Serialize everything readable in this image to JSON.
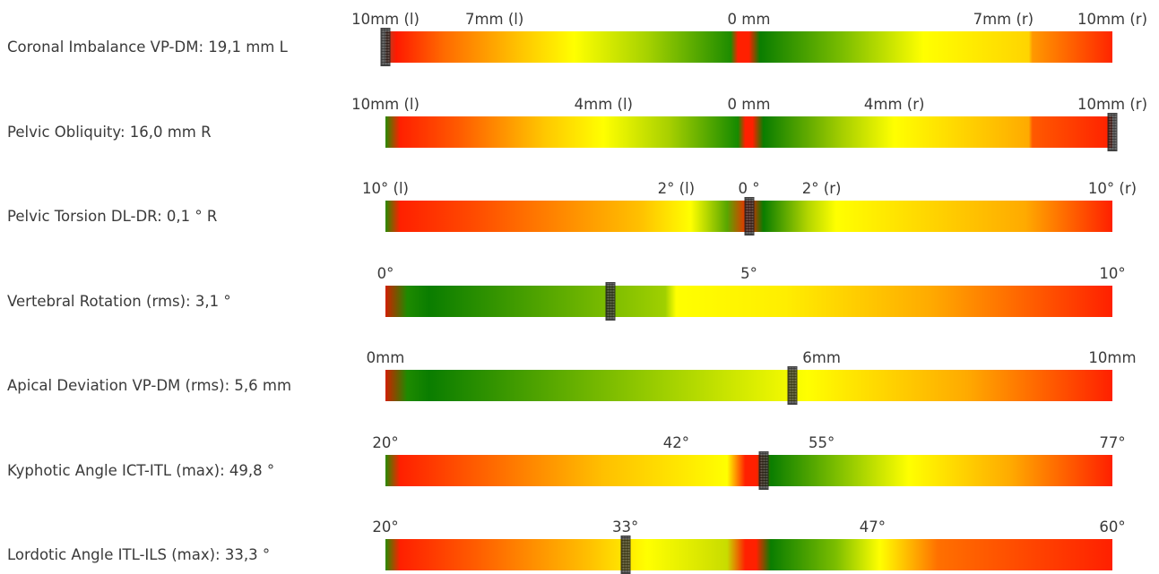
{
  "rows": [
    {
      "label": "Coronal Imbalance VP-DM: 19,1 mm L",
      "marker_fraction": 0.0,
      "ticks": [
        {
          "text": "10mm (l)",
          "at": 0.0
        },
        {
          "text": "7mm (l)",
          "at": 0.15
        },
        {
          "text": "0 mm",
          "at": 0.5
        },
        {
          "text": "7mm (r)",
          "at": 0.85
        },
        {
          "text": "10mm (r)",
          "at": 1.0
        }
      ],
      "gradient": "linear-gradient(to right,#a14a2b 0%,#ff1a00 1.5%,#ff6a00 8%,#ffc000 18%,#ffff00 26%,#a6d200 36%,#1e8c00 47.5%,#ff2000 48.5%,#ff2000 50%,#0a7d00 51.5%,#7cbe00 63%,#ffff00 74%,#ffd400 88.5%,#ff9900 89%,#ff2500 100%)"
    },
    {
      "label": "Pelvic Obliquity: 16,0 mm R",
      "marker_fraction": 1.0,
      "ticks": [
        {
          "text": "10mm (l)",
          "at": 0.0
        },
        {
          "text": "4mm (l)",
          "at": 0.3
        },
        {
          "text": "0 mm",
          "at": 0.5
        },
        {
          "text": "4mm (r)",
          "at": 0.7
        },
        {
          "text": "10mm (r)",
          "at": 1.0
        }
      ],
      "gradient": "linear-gradient(to right,#2a8a00 0%,#ff2000 2%,#ff5a00 10%,#ffc800 22%,#ffff00 30%,#a8d000 39%,#168a00 48.5%,#ff2000 49.5%,#ff2000 50.5%,#0a7d00 52%,#a8d000 63%,#ffff00 70%,#ffaa00 88.5%,#ff5a00 89%,#ff2000 100%)"
    },
    {
      "label": "Pelvic Torsion DL-DR: 0,1 ° R",
      "marker_fraction": 0.5,
      "ticks": [
        {
          "text": "10° (l)",
          "at": 0.0
        },
        {
          "text": "2° (l)",
          "at": 0.4
        },
        {
          "text": "0 °",
          "at": 0.5
        },
        {
          "text": "2° (r)",
          "at": 0.6
        },
        {
          "text": "10° (r)",
          "at": 1.0
        }
      ],
      "gradient": "linear-gradient(to right,#2a8a00 0%,#ff2000 2%,#ff4a00 12%,#ffc000 35%,#ffff00 42%,#58a600 47%,#ff2000 50%,#0a7d00 52%,#b0d400 58%,#ffff00 62%,#ffaa00 88%,#ff2000 100%)"
    },
    {
      "label": "Vertebral Rotation (rms): 3,1 °",
      "marker_fraction": 0.31,
      "ticks": [
        {
          "text": "0°",
          "at": 0.0
        },
        {
          "text": "5°",
          "at": 0.5
        },
        {
          "text": "10°",
          "at": 1.0
        }
      ],
      "gradient": "linear-gradient(to right,#d02000 0%,#1e8a00 3%,#0a7d00 6%,#a0d000 38.5%,#ffff00 40%,#ffee00 55%,#ffaa00 75%,#ff2000 100%)"
    },
    {
      "label": "Apical Deviation VP-DM (rms): 5,6 mm",
      "marker_fraction": 0.56,
      "ticks": [
        {
          "text": "0mm",
          "at": 0.0
        },
        {
          "text": "6mm",
          "at": 0.6
        },
        {
          "text": "10mm",
          "at": 1.0
        }
      ],
      "gradient": "linear-gradient(to right,#d02000 0%,#1e8a00 3%,#0a7d00 6%,#a0d000 38.5%,#ffff00 58%,#ffee00 62%,#ffaa00 80%,#ff2000 100%)"
    },
    {
      "label": "Kyphotic Angle ICT-ITL (max): 49,8 °",
      "marker_fraction": 0.52,
      "ticks": [
        {
          "text": "20°",
          "at": 0.0
        },
        {
          "text": "42°",
          "at": 0.4
        },
        {
          "text": "55°",
          "at": 0.6
        },
        {
          "text": "77°",
          "at": 1.0
        }
      ],
      "gradient": "linear-gradient(to right,#2a8a00 0%,#ff2000 2%,#ff5a00 12%,#ffc000 30%,#ffff00 47%,#ff2000 49.5%,#ff2000 51%,#0a7d00 53%,#7cbe00 62%,#ffff00 72%,#ffaa00 86%,#ff2000 100%)"
    },
    {
      "label": "Lordotic Angle ITL-ILS (max): 33,3 °",
      "marker_fraction": 0.33,
      "ticks": [
        {
          "text": "20°",
          "at": 0.0
        },
        {
          "text": "33°",
          "at": 0.33
        },
        {
          "text": "47°",
          "at": 0.67
        },
        {
          "text": "60°",
          "at": 1.0
        }
      ],
      "gradient": "linear-gradient(to right,#2a8a00 0%,#ff2000 2%,#ff5a00 12%,#ffc000 28%,#ffff00 36%,#c8dc00 47%,#ff2000 49.5%,#ff2000 51%,#0a7d00 53%,#7cbe00 62%,#ffff00 68%,#ff7000 76%,#ff2000 100%)"
    }
  ]
}
